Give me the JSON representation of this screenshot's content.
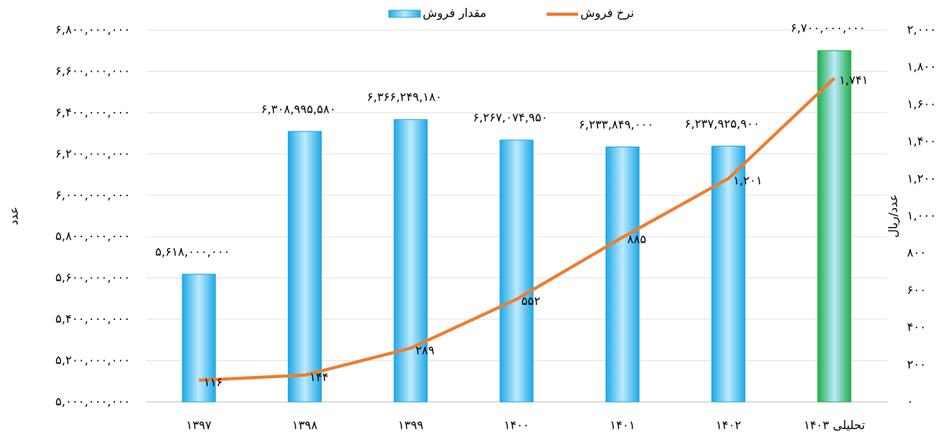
{
  "chart_data": {
    "type": "bar",
    "categories": [
      "۱۳۹۷",
      "۱۳۹۸",
      "۱۳۹۹",
      "۱۴۰۰",
      "۱۴۰۱",
      "۱۴۰۲",
      "تحلیلی ۱۴۰۳"
    ],
    "series": [
      {
        "name": "مقدار فروش",
        "type": "bar",
        "color": "#1ea9e6",
        "colors": [
          "#1ea9e6",
          "#1ea9e6",
          "#1ea9e6",
          "#1ea9e6",
          "#1ea9e6",
          "#1ea9e6",
          "#1fae4b"
        ],
        "label_colors": [
          "#000000",
          "#000000",
          "#000000",
          "#000000",
          "#000000",
          "#000000",
          "#1fae4b"
        ],
        "values": [
          5618000000,
          6308995580,
          6366249180,
          6267074950,
          6233849000,
          6237925900,
          6700000000
        ],
        "value_labels": [
          "۵,۶۱۸,۰۰۰,۰۰۰",
          "۶,۳۰۸,۹۹۵,۵۸۰",
          "۶,۳۶۶,۲۴۹,۱۸۰",
          "۶,۲۶۷,۰۷۴,۹۵۰",
          "۶,۲۳۳,۸۴۹,۰۰۰",
          "۶,۲۳۷,۹۲۵,۹۰۰",
          "۶,۷۰۰,۰۰۰,۰۰۰"
        ]
      },
      {
        "name": "نرخ فروش",
        "type": "line",
        "axis": "y2",
        "color": "#ed7d31",
        "values": [
          116,
          144,
          289,
          552,
          885,
          1201,
          1741
        ],
        "value_labels": [
          "۱۱۶",
          "۱۴۴",
          "۲۸۹",
          "۵۵۲",
          "۸۸۵",
          "۱,۲۰۱",
          "۱,۷۴۱"
        ]
      }
    ],
    "ylabel": "عدد",
    "y2label": "عدد/ریال",
    "ylim": [
      5000000000,
      6800000000
    ],
    "yticks": [
      {
        "value": 5000000000,
        "label": "۵,۰۰۰,۰۰۰,۰۰۰"
      },
      {
        "value": 5200000000,
        "label": "۵,۲۰۰,۰۰۰,۰۰۰"
      },
      {
        "value": 5400000000,
        "label": "۵,۴۰۰,۰۰۰,۰۰۰"
      },
      {
        "value": 5600000000,
        "label": "۵,۶۰۰,۰۰۰,۰۰۰"
      },
      {
        "value": 5800000000,
        "label": "۵,۸۰۰,۰۰۰,۰۰۰"
      },
      {
        "value": 6000000000,
        "label": "۶,۰۰۰,۰۰۰,۰۰۰"
      },
      {
        "value": 6200000000,
        "label": "۶,۲۰۰,۰۰۰,۰۰۰"
      },
      {
        "value": 6400000000,
        "label": "۶,۴۰۰,۰۰۰,۰۰۰"
      },
      {
        "value": 6600000000,
        "label": "۶,۶۰۰,۰۰۰,۰۰۰"
      },
      {
        "value": 6800000000,
        "label": "۶,۸۰۰,۰۰۰,۰۰۰"
      }
    ],
    "y2lim": [
      0,
      2000
    ],
    "y2ticks": [
      {
        "value": 0,
        "label": "۰"
      },
      {
        "value": 200,
        "label": "۲۰۰"
      },
      {
        "value": 400,
        "label": "۴۰۰"
      },
      {
        "value": 600,
        "label": "۶۰۰"
      },
      {
        "value": 800,
        "label": "۸۰۰"
      },
      {
        "value": 1000,
        "label": "۱,۰۰۰"
      },
      {
        "value": 1200,
        "label": "۱,۲۰۰"
      },
      {
        "value": 1400,
        "label": "۱,۴۰۰"
      },
      {
        "value": 1600,
        "label": "۱,۶۰۰"
      },
      {
        "value": 1800,
        "label": "۱,۸۰۰"
      },
      {
        "value": 2000,
        "label": "۲,۰۰۰"
      }
    ],
    "grid": true,
    "legend": "top"
  }
}
